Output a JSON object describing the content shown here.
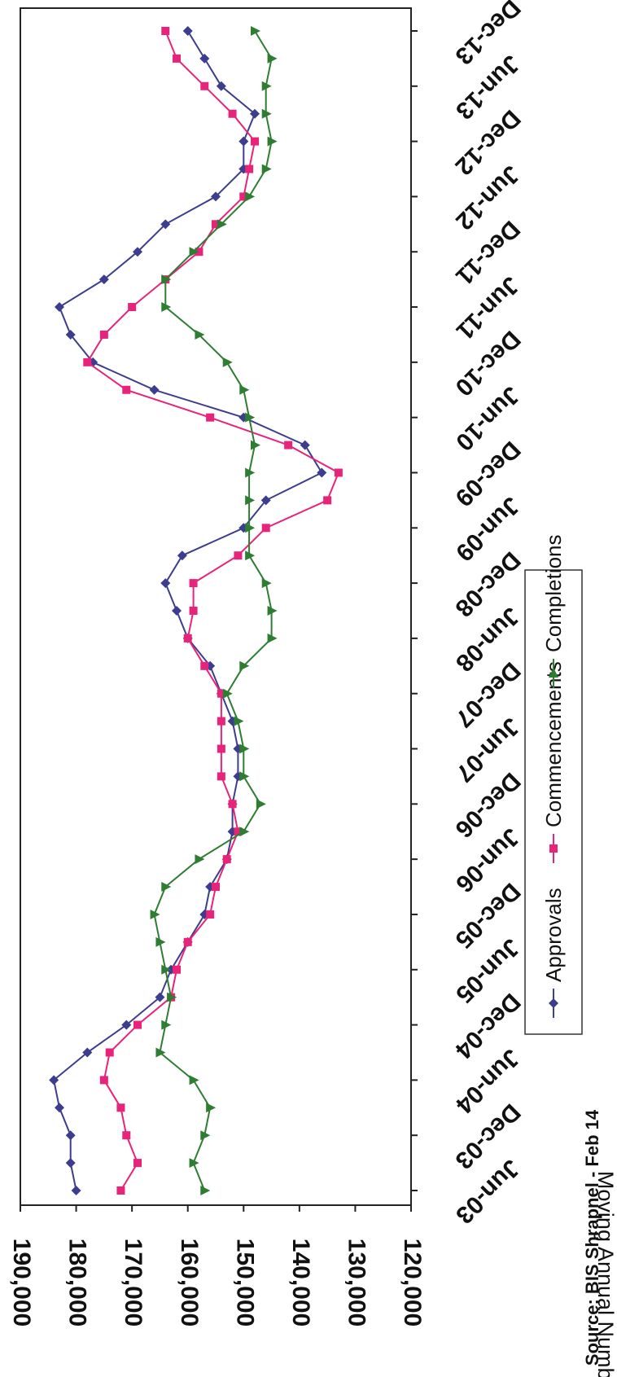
{
  "chart_data": {
    "type": "line",
    "title": "",
    "xlabel": "",
    "ylabel": "Moving Annual Numbers",
    "ylim": [
      120000,
      190000
    ],
    "y_ticks": [
      "190,000",
      "180,000",
      "170,000",
      "160,000",
      "150,000",
      "140,000",
      "130,000",
      "120,000"
    ],
    "x_ticks": [
      "Jun-03",
      "Dec-03",
      "Jun-04",
      "Dec-04",
      "Jun-05",
      "Dec-05",
      "Jun-06",
      "Dec-06",
      "Jun-07",
      "Dec-07",
      "Jun-08",
      "Dec-08",
      "Jun-09",
      "Dec-09",
      "Jun-10",
      "Dec-10",
      "Jun-11",
      "Dec-11",
      "Jun-12",
      "Dec-12",
      "Jun-13",
      "Dec-13"
    ],
    "x": [
      "Jun-03",
      "Sep-03",
      "Dec-03",
      "Mar-04",
      "Jun-04",
      "Sep-04",
      "Dec-04",
      "Mar-05",
      "Jun-05",
      "Sep-05",
      "Dec-05",
      "Mar-06",
      "Jun-06",
      "Sep-06",
      "Dec-06",
      "Mar-07",
      "Jun-07",
      "Sep-07",
      "Dec-07",
      "Mar-08",
      "Jun-08",
      "Sep-08",
      "Dec-08",
      "Mar-09",
      "Jun-09",
      "Sep-09",
      "Dec-09",
      "Mar-10",
      "Jun-10",
      "Sep-10",
      "Dec-10",
      "Mar-11",
      "Jun-11",
      "Sep-11",
      "Dec-11",
      "Mar-12",
      "Jun-12",
      "Sep-12",
      "Dec-12",
      "Mar-13",
      "Jun-13",
      "Sep-13",
      "Dec-13"
    ],
    "grid": false,
    "legend_position": "bottom",
    "series": [
      {
        "name": "Approvals",
        "color": "#3d3d8f",
        "marker": "diamond",
        "values": [
          180000,
          181000,
          181000,
          183000,
          184000,
          178000,
          171000,
          165000,
          163000,
          160000,
          157000,
          156000,
          153000,
          152000,
          152000,
          151000,
          151000,
          152000,
          154000,
          156000,
          160000,
          162000,
          164000,
          161000,
          150000,
          146000,
          136000,
          139000,
          150000,
          166000,
          177000,
          181000,
          183000,
          175000,
          169000,
          164000,
          155000,
          150000,
          150000,
          148000,
          154000,
          157000,
          160000
        ]
      },
      {
        "name": "Commencements",
        "color": "#e8237a",
        "marker": "square",
        "values": [
          172000,
          169000,
          171000,
          172000,
          175000,
          174000,
          169000,
          163000,
          162000,
          160000,
          156000,
          155000,
          153000,
          151000,
          152000,
          154000,
          154000,
          154000,
          154000,
          157000,
          160000,
          159000,
          159000,
          151000,
          146000,
          135000,
          133000,
          142000,
          156000,
          171000,
          178000,
          175000,
          170000,
          164000,
          158000,
          155000,
          150000,
          149000,
          148000,
          152000,
          157000,
          162000,
          164000
        ]
      },
      {
        "name": "Completions",
        "color": "#2e7d32",
        "marker": "triangle",
        "values": [
          157000,
          159000,
          157000,
          156000,
          159000,
          165000,
          164000,
          163000,
          164000,
          165000,
          166000,
          164000,
          158000,
          150000,
          147000,
          150000,
          150000,
          151000,
          153000,
          150000,
          145000,
          145000,
          146000,
          149000,
          149000,
          149000,
          149000,
          148000,
          149000,
          150000,
          153000,
          158000,
          164000,
          164000,
          159000,
          154000,
          149000,
          146000,
          145000,
          146000,
          146000,
          145000,
          148000
        ]
      }
    ]
  },
  "source": "Source: BIS Shrapnel - Feb 14"
}
